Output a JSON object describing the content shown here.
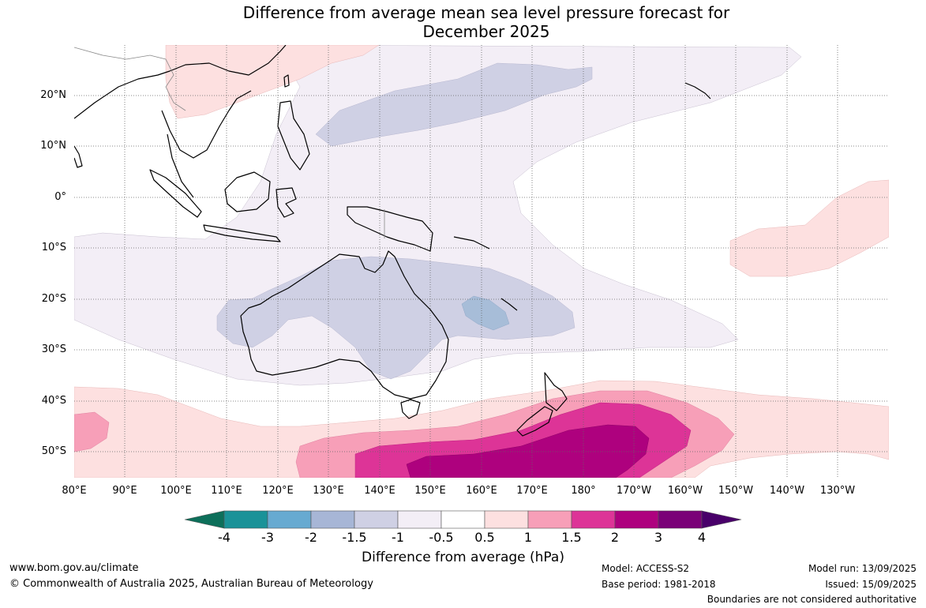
{
  "title": {
    "line1": "Difference from average mean sea level pressure forecast for",
    "line2": "December 2025"
  },
  "map": {
    "lon_labels": [
      "80°E",
      "90°E",
      "100°E",
      "110°E",
      "120°E",
      "130°E",
      "140°E",
      "150°E",
      "160°E",
      "170°E",
      "180°",
      "170°W",
      "160°W",
      "150°W",
      "140°W",
      "130°W"
    ],
    "lat_labels": [
      "20°N",
      "10°N",
      "0°",
      "10°S",
      "20°S",
      "30°S",
      "40°S",
      "50°S"
    ]
  },
  "colorbar": {
    "tick_labels": [
      "-4",
      "-3",
      "-2",
      "-1.5",
      "-1",
      "-0.5",
      "0.5",
      "1",
      "1.5",
      "2",
      "3",
      "4"
    ],
    "colors": [
      "#0d6f5a",
      "#1a9298",
      "#67aad1",
      "#a7b6d6",
      "#cfd0e4",
      "#f3eef6",
      "#ffffff",
      "#fde0e0",
      "#f79fb8",
      "#dd3497",
      "#ae017e",
      "#7a0177",
      "#49006a"
    ],
    "title": "Difference from average (hPa)"
  },
  "footer": {
    "website": "www.bom.gov.au/climate",
    "copyright": "© Commonwealth of Australia 2025, Australian Bureau of Meteorology",
    "model": "Model: ACCESS-S2",
    "base_period": "Base period: 1981-2018",
    "model_run": "Model run: 13/09/2025",
    "issued": "Issued: 15/09/2025",
    "disclaimer": "Boundaries are not considered authoritative"
  }
}
